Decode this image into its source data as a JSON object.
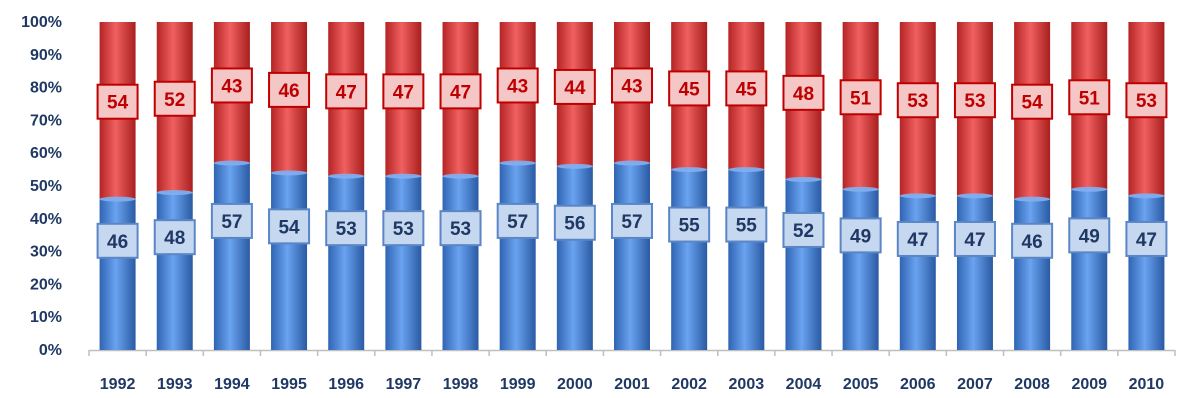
{
  "chart_data": {
    "type": "bar",
    "stacked": true,
    "percent": true,
    "categories": [
      "1992",
      "1993",
      "1994",
      "1995",
      "1996",
      "1997",
      "1998",
      "1999",
      "2000",
      "2001",
      "2002",
      "2003",
      "2004",
      "2005",
      "2006",
      "2007",
      "2008",
      "2009",
      "2010"
    ],
    "series": [
      {
        "values": [
          46,
          48,
          57,
          54,
          53,
          53,
          53,
          57,
          56,
          57,
          55,
          55,
          52,
          49,
          47,
          47,
          46,
          49,
          47
        ],
        "color": "#4a86d8"
      },
      {
        "values": [
          54,
          52,
          43,
          46,
          47,
          47,
          47,
          43,
          44,
          43,
          45,
          45,
          48,
          51,
          53,
          53,
          54,
          51,
          53
        ],
        "color": "#d83c3c"
      }
    ],
    "yticks": [
      "0%",
      "10%",
      "20%",
      "30%",
      "40%",
      "50%",
      "60%",
      "70%",
      "80%",
      "90%",
      "100%"
    ],
    "ylim": [
      0,
      100
    ],
    "title": "",
    "xlabel": "",
    "ylabel": "",
    "grid": false,
    "legend": "none",
    "label_colors": {
      "blue_box_fill": "#c6d8ef",
      "blue_box_stroke": "#5b86c5",
      "blue_text": "#1f3864",
      "red_box_fill": "#f4c6c6",
      "red_box_stroke": "#c00000",
      "red_text": "#c00000"
    }
  }
}
